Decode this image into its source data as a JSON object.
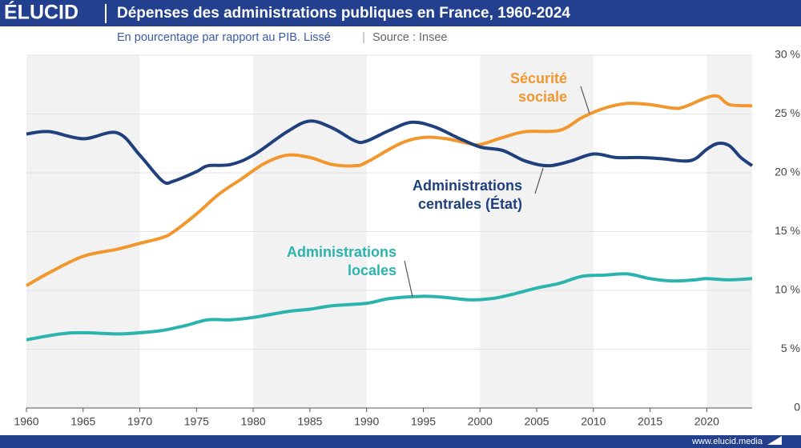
{
  "header": {
    "logo": "ÉLUCID",
    "footer": "www.elucid.media"
  },
  "chart_data": {
    "type": "line",
    "title": "Dépenses des administrations publiques en France, 1960-2024",
    "subtitle": "En pourcentage par rapport au PIB. Lissé",
    "source": "Source : Insee",
    "xlim": [
      1960,
      2024
    ],
    "xticks": [
      1960,
      1965,
      1970,
      1975,
      1980,
      1985,
      1990,
      1995,
      2000,
      2005,
      2010,
      2015,
      2020
    ],
    "ylim": [
      0,
      30
    ],
    "yticks": [
      0,
      {
        "value": 5,
        "label": "5 %"
      },
      {
        "value": 10,
        "label": "10 %"
      },
      {
        "value": 15,
        "label": "15 %"
      },
      {
        "value": 20,
        "label": "20 %"
      },
      {
        "value": 25,
        "label": "25 %"
      },
      {
        "value": 30,
        "label": "30 %"
      }
    ],
    "grid": true,
    "shaded_decades": true,
    "series": [
      {
        "name": "Sécurité sociale",
        "color": "#f2972e",
        "x": [
          1960,
          1962,
          1965,
          1968,
          1970,
          1972,
          1973,
          1975,
          1977,
          1979,
          1981,
          1983,
          1985,
          1987,
          1989,
          1990,
          1993,
          1995,
          1997,
          1999,
          2000,
          2002,
          2004,
          2007,
          2009,
          2011,
          2013,
          2015,
          2017,
          2018,
          2020,
          2021,
          2022,
          2024
        ],
        "values": [
          10.4,
          11.5,
          12.9,
          13.5,
          14.0,
          14.5,
          15.0,
          16.5,
          18.2,
          19.5,
          20.8,
          21.5,
          21.3,
          20.7,
          20.6,
          20.9,
          22.5,
          23.0,
          22.9,
          22.5,
          22.4,
          23.0,
          23.5,
          23.6,
          24.7,
          25.5,
          25.9,
          25.8,
          25.5,
          25.6,
          26.4,
          26.5,
          25.8,
          25.7
        ]
      },
      {
        "name": "Administrations centrales (État)",
        "color": "#1f3f7d",
        "x": [
          1960,
          1962,
          1965,
          1968,
          1970,
          1972,
          1973,
          1975,
          1976,
          1978,
          1980,
          1983,
          1985,
          1987,
          1989,
          1990,
          1992,
          1994,
          1996,
          1998,
          2000,
          2002,
          2004,
          2006,
          2008,
          2010,
          2012,
          2014,
          2016,
          2018,
          2019,
          2020,
          2021,
          2022,
          2023,
          2024
        ],
        "values": [
          23.3,
          23.5,
          22.9,
          23.4,
          21.5,
          19.3,
          19.3,
          20.1,
          20.6,
          20.7,
          21.5,
          23.5,
          24.4,
          23.8,
          22.7,
          22.7,
          23.6,
          24.3,
          23.9,
          23.0,
          22.2,
          21.9,
          21.0,
          20.6,
          21.0,
          21.6,
          21.3,
          21.3,
          21.2,
          21.0,
          21.2,
          22.0,
          22.5,
          22.3,
          21.3,
          20.6
        ]
      },
      {
        "name": "Administrations locales",
        "color": "#2bb3ae",
        "x": [
          1960,
          1963,
          1965,
          1968,
          1970,
          1972,
          1974,
          1976,
          1978,
          1980,
          1983,
          1985,
          1987,
          1990,
          1992,
          1995,
          1997,
          1999,
          2001,
          2003,
          2005,
          2007,
          2009,
          2011,
          2013,
          2015,
          2017,
          2019,
          2020,
          2022,
          2024
        ],
        "values": [
          5.8,
          6.3,
          6.4,
          6.3,
          6.4,
          6.6,
          7.0,
          7.5,
          7.5,
          7.7,
          8.2,
          8.4,
          8.7,
          8.9,
          9.3,
          9.5,
          9.4,
          9.2,
          9.3,
          9.7,
          10.2,
          10.6,
          11.2,
          11.3,
          11.4,
          11.0,
          10.8,
          10.9,
          11.0,
          10.9,
          11.0
        ]
      }
    ]
  }
}
